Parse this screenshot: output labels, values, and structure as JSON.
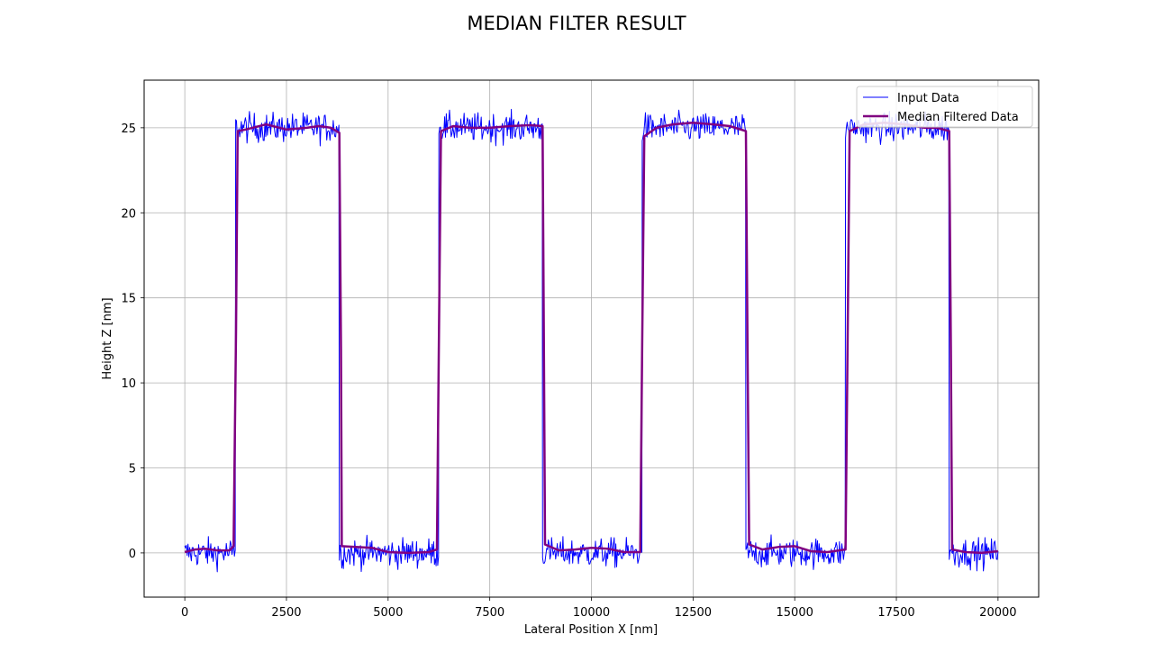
{
  "chart_data": {
    "type": "line",
    "title": "MEDIAN FILTER RESULT",
    "xlabel": "Lateral Position X [nm]",
    "ylabel": "Height Z [nm]",
    "xlim": [
      -1000,
      21000
    ],
    "ylim": [
      -2.6,
      27.8
    ],
    "xticks": [
      0,
      2500,
      5000,
      7500,
      10000,
      12500,
      15000,
      17500,
      20000
    ],
    "yticks": [
      0,
      5,
      10,
      15,
      20,
      25
    ],
    "grid": true,
    "legend_position": "top-right",
    "series": [
      {
        "name": "Input Data",
        "color": "#0000ff",
        "linewidth": 1,
        "low_level": 0.0,
        "high_level": 25.0,
        "noise_amplitude": 0.6,
        "segments": [
          {
            "x_start": 0,
            "x_end": 1250,
            "level": "low"
          },
          {
            "x_start": 1250,
            "x_end": 3800,
            "level": "high"
          },
          {
            "x_start": 3800,
            "x_end": 6250,
            "level": "low"
          },
          {
            "x_start": 6250,
            "x_end": 8800,
            "level": "high"
          },
          {
            "x_start": 8800,
            "x_end": 11250,
            "level": "low"
          },
          {
            "x_start": 11250,
            "x_end": 13800,
            "level": "high"
          },
          {
            "x_start": 13800,
            "x_end": 16250,
            "level": "low"
          },
          {
            "x_start": 16250,
            "x_end": 18800,
            "level": "high"
          },
          {
            "x_start": 18800,
            "x_end": 20000,
            "level": "low"
          }
        ]
      },
      {
        "name": "Median Filtered Data",
        "color": "#800080",
        "linewidth": 2,
        "points": [
          [
            0,
            0.05
          ],
          [
            250,
            0.2
          ],
          [
            500,
            0.25
          ],
          [
            800,
            0.15
          ],
          [
            1100,
            0.15
          ],
          [
            1200,
            0.4
          ],
          [
            1260,
            13.0
          ],
          [
            1300,
            24.8
          ],
          [
            1500,
            24.9
          ],
          [
            2000,
            25.2
          ],
          [
            2500,
            24.9
          ],
          [
            3000,
            25.0
          ],
          [
            3300,
            25.1
          ],
          [
            3600,
            25.0
          ],
          [
            3800,
            24.7
          ],
          [
            3840,
            12.0
          ],
          [
            3860,
            0.4
          ],
          [
            4200,
            0.35
          ],
          [
            4600,
            0.3
          ],
          [
            5000,
            0.05
          ],
          [
            5500,
            0.0
          ],
          [
            6000,
            0.05
          ],
          [
            6200,
            0.2
          ],
          [
            6250,
            12.5
          ],
          [
            6300,
            24.8
          ],
          [
            6600,
            25.1
          ],
          [
            7000,
            25.0
          ],
          [
            7500,
            25.0
          ],
          [
            8000,
            25.1
          ],
          [
            8500,
            25.15
          ],
          [
            8800,
            25.1
          ],
          [
            8830,
            12.5
          ],
          [
            8860,
            0.5
          ],
          [
            9200,
            0.15
          ],
          [
            9600,
            0.2
          ],
          [
            10000,
            0.3
          ],
          [
            10400,
            0.25
          ],
          [
            10800,
            0.05
          ],
          [
            11200,
            0.05
          ],
          [
            11250,
            12.5
          ],
          [
            11300,
            24.5
          ],
          [
            11600,
            25.0
          ],
          [
            12000,
            25.2
          ],
          [
            12500,
            25.3
          ],
          [
            13000,
            25.2
          ],
          [
            13400,
            25.1
          ],
          [
            13800,
            24.8
          ],
          [
            13840,
            12.0
          ],
          [
            13880,
            0.5
          ],
          [
            14200,
            0.2
          ],
          [
            14600,
            0.35
          ],
          [
            15000,
            0.4
          ],
          [
            15400,
            0.1
          ],
          [
            15800,
            0.05
          ],
          [
            16250,
            0.2
          ],
          [
            16300,
            12.5
          ],
          [
            16350,
            24.8
          ],
          [
            16700,
            25.2
          ],
          [
            17200,
            25.3
          ],
          [
            17700,
            25.2
          ],
          [
            18200,
            25.0
          ],
          [
            18500,
            25.0
          ],
          [
            18800,
            24.8
          ],
          [
            18840,
            12.0
          ],
          [
            18870,
            0.2
          ],
          [
            19200,
            0.05
          ],
          [
            19600,
            0.0
          ],
          [
            20000,
            0.1
          ]
        ]
      }
    ]
  }
}
